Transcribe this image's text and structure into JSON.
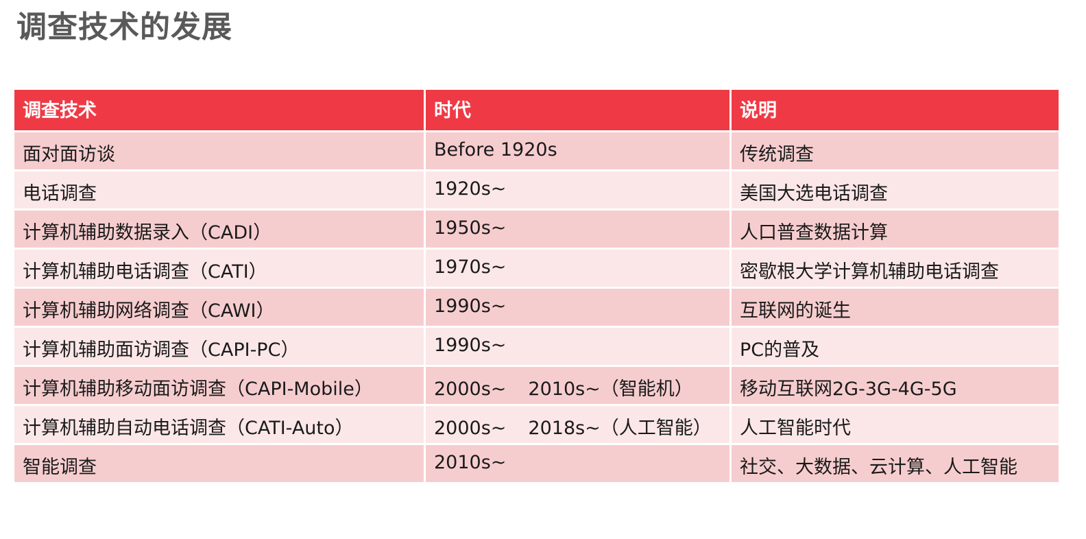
{
  "title": "调查技术的发展",
  "table": {
    "headers": [
      "调查技术",
      "时代",
      "说明"
    ],
    "rows": [
      {
        "tech": "面对面访谈",
        "era": "Before 1920s",
        "era2": "",
        "note": "传统调查"
      },
      {
        "tech": "电话调查",
        "era": "1920s~",
        "era2": "",
        "note": "美国大选电话调查"
      },
      {
        "tech": "计算机辅助数据录入（CADI）",
        "era": "1950s~",
        "era2": "",
        "note": "人口普查数据计算"
      },
      {
        "tech": "计算机辅助电话调查（CATI）",
        "era": "1970s~",
        "era2": "",
        "note": "密歇根大学计算机辅助电话调查"
      },
      {
        "tech": "计算机辅助网络调查（CAWI）",
        "era": "1990s~",
        "era2": "",
        "note": "互联网的诞生"
      },
      {
        "tech": "计算机辅助面访调查（CAPI-PC）",
        "era": "1990s~",
        "era2": "",
        "note": "PC的普及"
      },
      {
        "tech": "计算机辅助移动面访调查（CAPI-Mobile）",
        "era": "2000s~",
        "era2": "2010s~（智能机）",
        "note": "移动互联网2G-3G-4G-5G"
      },
      {
        "tech": "计算机辅助自动电话调查（CATI-Auto）",
        "era": "2000s~",
        "era2": "2018s~（人工智能）",
        "note": "人工智能时代"
      },
      {
        "tech": "智能调查",
        "era": "2010s~",
        "era2": "",
        "note": "社交、大数据、云计算、人工智能"
      }
    ]
  }
}
